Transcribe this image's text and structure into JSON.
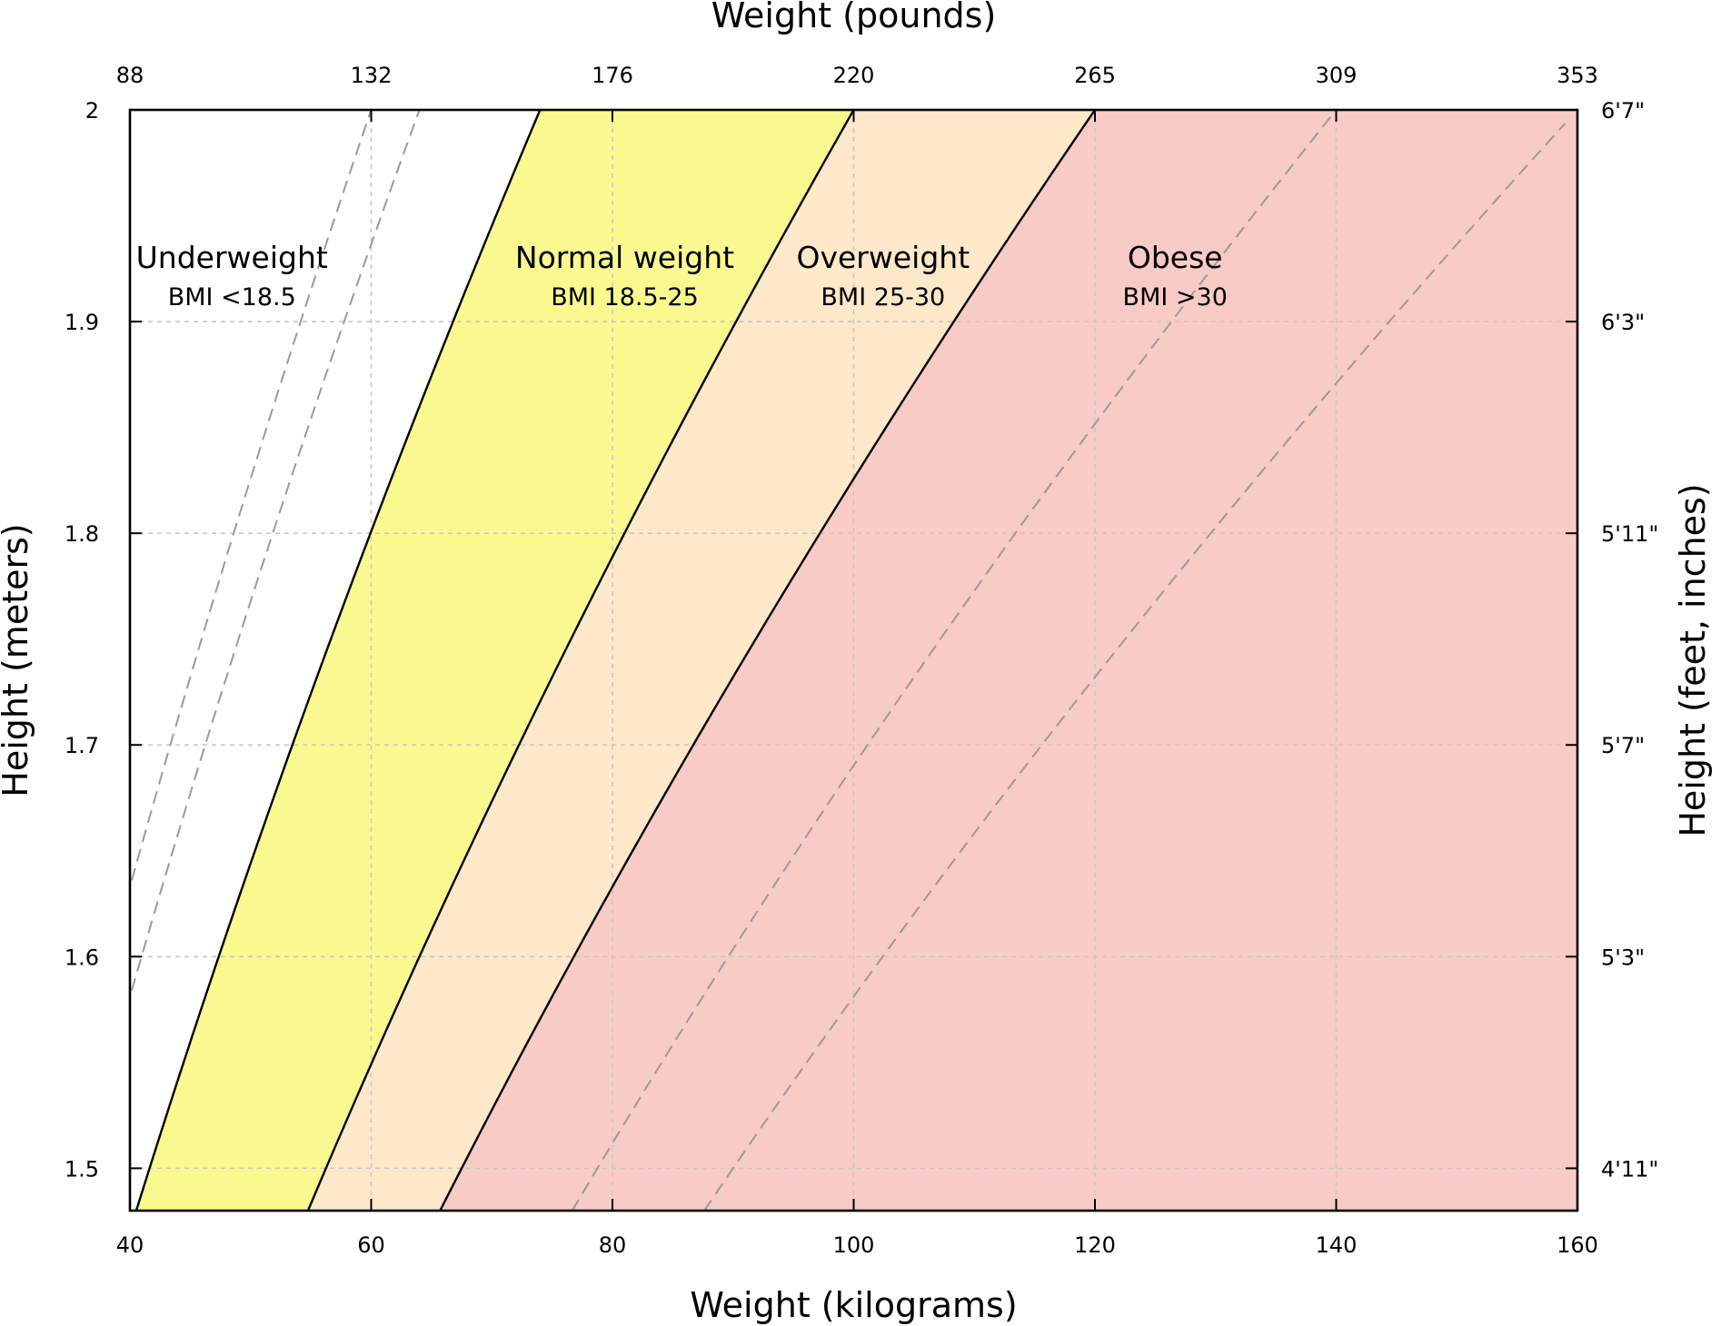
{
  "chart_data": {
    "type": "area",
    "title": "",
    "xlabel": "Weight (kilograms)",
    "x2label": "Weight (pounds)",
    "ylabel": "Height (meters)",
    "y2label": "Height (feet, inches)",
    "xlim": [
      40,
      160
    ],
    "ylim": [
      1.48,
      2.0
    ],
    "x_ticks": [
      40,
      60,
      80,
      100,
      120,
      140,
      160
    ],
    "x2_ticks": [
      {
        "kg": 40,
        "label": "88"
      },
      {
        "kg": 60,
        "label": "132"
      },
      {
        "kg": 80,
        "label": "176"
      },
      {
        "kg": 100,
        "label": "220"
      },
      {
        "kg": 120,
        "label": "265"
      },
      {
        "kg": 140,
        "label": "309"
      },
      {
        "kg": 160,
        "label": "353"
      }
    ],
    "y_ticks": [
      {
        "value": 1.5,
        "label": "1.5"
      },
      {
        "value": 1.6,
        "label": "1.6"
      },
      {
        "value": 1.7,
        "label": "1.7"
      },
      {
        "value": 1.8,
        "label": "1.8"
      },
      {
        "value": 1.9,
        "label": "1.9"
      },
      {
        "value": 2.0,
        "label": "2"
      }
    ],
    "y2_ticks": [
      {
        "value": 1.5,
        "label": "4'11\""
      },
      {
        "value": 1.6,
        "label": "5'3\""
      },
      {
        "value": 1.7,
        "label": "5'7\""
      },
      {
        "value": 1.8,
        "label": "5'11\""
      },
      {
        "value": 1.9,
        "label": "6'3\""
      },
      {
        "value": 2.0,
        "label": "6'7\""
      }
    ],
    "grid": true,
    "boundaries_bmi": [
      18.5,
      25,
      30
    ],
    "guide_lines_bmi": [
      15,
      16,
      35,
      40
    ],
    "regions": [
      {
        "name": "Underweight",
        "bmi_label": "BMI <18.5",
        "bmi_min": 0,
        "bmi_max": 18.5,
        "color": "#ffffff"
      },
      {
        "name": "Normal weight",
        "bmi_label": "BMI 18.5-25",
        "bmi_min": 18.5,
        "bmi_max": 25,
        "color": "#faf990"
      },
      {
        "name": "Overweight",
        "bmi_label": "BMI 25-30",
        "bmi_min": 25,
        "bmi_max": 30,
        "color": "#fde9c9"
      },
      {
        "name": "Obese",
        "bmi_label": "BMI >30",
        "bmi_min": 30,
        "bmi_max": 1000,
        "color": "#f8cbc6"
      }
    ]
  }
}
